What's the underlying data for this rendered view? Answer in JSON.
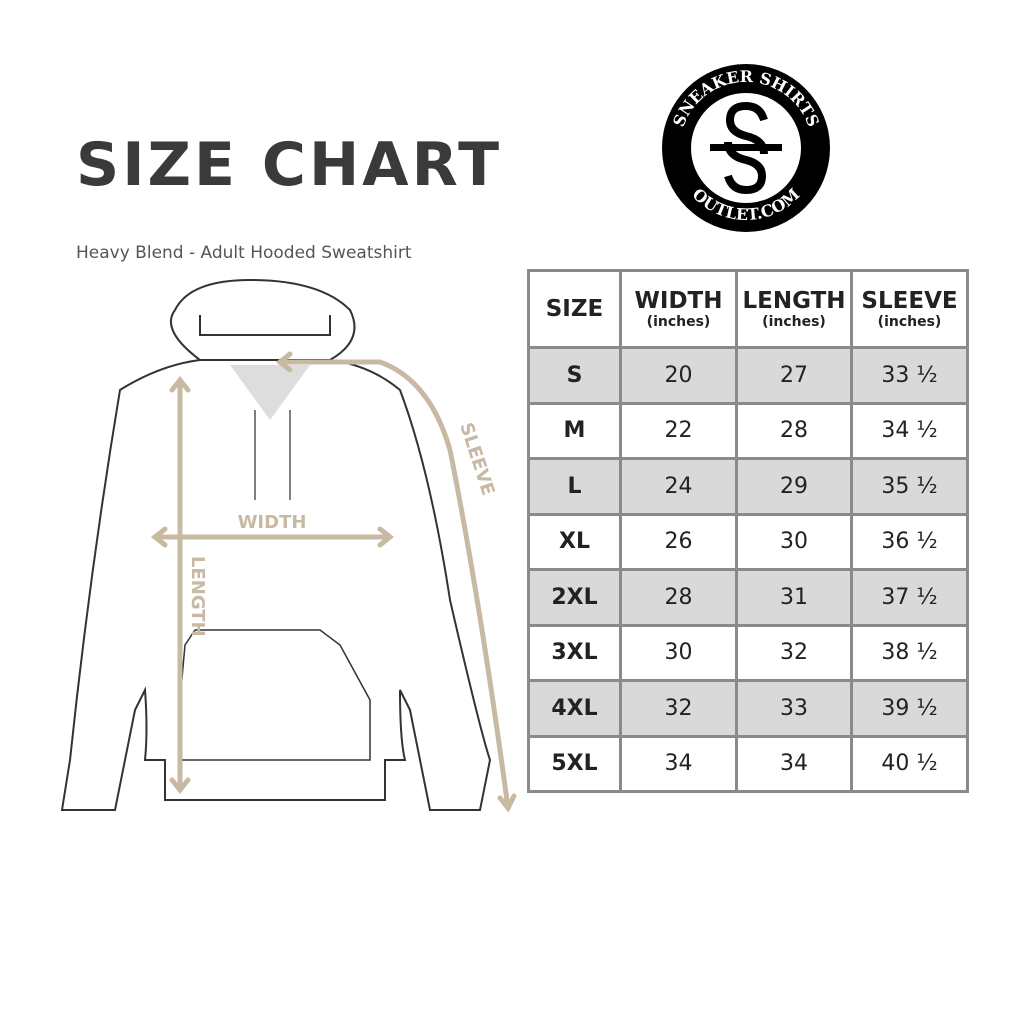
{
  "header": {
    "title": "SIZE CHART",
    "subtitle": "Heavy Blend - Adult Hooded Sweatshirt"
  },
  "logo": {
    "top_text": "SNEAKER SHIRTS",
    "bottom_text": "OUTLET.COM",
    "monogram": "SS"
  },
  "diagram": {
    "labels": {
      "width": "WIDTH",
      "length": "LENGTH",
      "sleeve": "SLEEVE"
    },
    "accent_color": "#c8b9a3"
  },
  "table": {
    "columns": [
      {
        "label": "SIZE",
        "unit": ""
      },
      {
        "label": "WIDTH",
        "unit": "(inches)"
      },
      {
        "label": "LENGTH",
        "unit": "(inches)"
      },
      {
        "label": "SLEEVE",
        "unit": "(inches)"
      }
    ],
    "rows": [
      [
        "S",
        "20",
        "27",
        "33 ½"
      ],
      [
        "M",
        "22",
        "28",
        "34 ½"
      ],
      [
        "L",
        "24",
        "29",
        "35 ½"
      ],
      [
        "XL",
        "26",
        "30",
        "36 ½"
      ],
      [
        "2XL",
        "28",
        "31",
        "37 ½"
      ],
      [
        "3XL",
        "30",
        "32",
        "38 ½"
      ],
      [
        "4XL",
        "32",
        "33",
        "39 ½"
      ],
      [
        "5XL",
        "34",
        "34",
        "40 ½"
      ]
    ],
    "shade_color": "#d9d9d9"
  }
}
